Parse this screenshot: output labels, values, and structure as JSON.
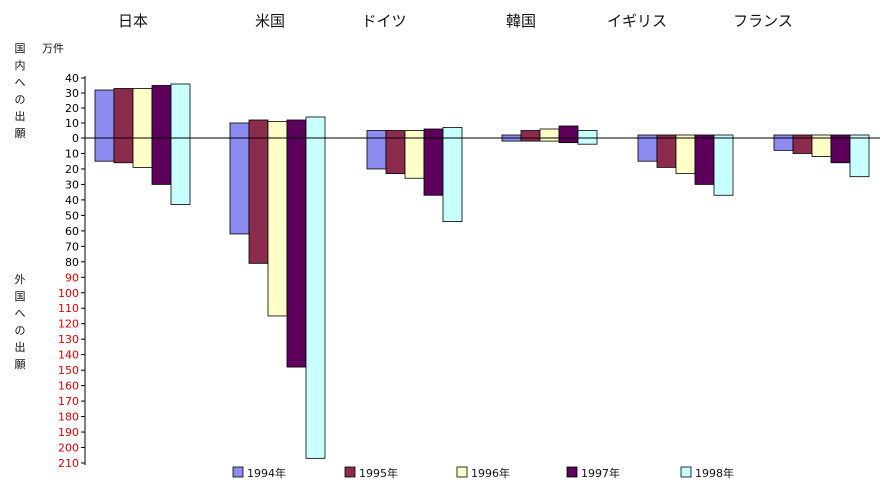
{
  "chart_data": {
    "type": "bar",
    "unit_label": "万件",
    "upper_axis_caption": "国内への出願",
    "lower_axis_caption": "外国への出願",
    "categories": [
      "日本",
      "米国",
      "ドイツ",
      "韓国",
      "イギリス",
      "フランス"
    ],
    "series": [
      {
        "name": "1994年",
        "color": "#8c8cf0",
        "domestic": [
          32,
          10,
          5,
          2,
          2,
          2
        ],
        "foreign": [
          15,
          62,
          20,
          2,
          15,
          8
        ]
      },
      {
        "name": "1995年",
        "color": "#8c2c4c",
        "domestic": [
          33,
          12,
          5,
          5,
          2,
          2
        ],
        "foreign": [
          16,
          81,
          23,
          2,
          19,
          10
        ]
      },
      {
        "name": "1996年",
        "color": "#ffffc8",
        "domestic": [
          33,
          11,
          5,
          6,
          2,
          2
        ],
        "foreign": [
          19,
          115,
          26,
          2,
          23,
          12
        ]
      },
      {
        "name": "1997年",
        "color": "#5c005c",
        "domestic": [
          35,
          12,
          6,
          8,
          2,
          2
        ],
        "foreign": [
          30,
          148,
          37,
          3,
          30,
          16
        ]
      },
      {
        "name": "1998年",
        "color": "#c8ffff",
        "domestic": [
          36,
          14,
          7,
          5,
          2,
          2
        ],
        "foreign": [
          43,
          207,
          54,
          4,
          37,
          25
        ]
      }
    ],
    "y_ticks_upper": [
      "40",
      "30",
      "20",
      "10",
      "0"
    ],
    "y_ticks_lower": [
      "10",
      "20",
      "30",
      "40",
      "50",
      "60",
      "70",
      "80",
      "90",
      "100",
      "110",
      "120",
      "130",
      "140",
      "150",
      "160",
      "170",
      "180",
      "190",
      "200",
      "210"
    ],
    "ylim": [
      -210,
      40
    ],
    "tick_color_upper": "#000000",
    "tick_color_lower_black": "#000000",
    "tick_color_lower_red": "#e00000"
  }
}
